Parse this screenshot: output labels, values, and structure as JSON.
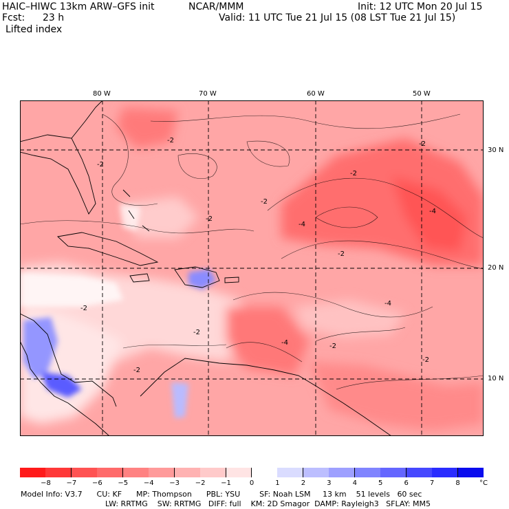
{
  "header": {
    "model": "HAIC–HIWC 13km ARW–GFS init",
    "org": "NCAR/MMM",
    "init": "Init: 12 UTC Mon 20 Jul 15",
    "fcst_label": "Fcst:",
    "fcst_value": "23 h",
    "valid": "Valid: 11 UTC Tue 21 Jul 15 (08 LST Tue 21 Jul 15)",
    "field": "Lifted index"
  },
  "axes": {
    "lon_labels": [
      "80 W",
      "70 W",
      "60 W",
      "50 W"
    ],
    "lat_labels": [
      "30 N",
      "20 N",
      "10 N"
    ]
  },
  "colorbar": {
    "labels": [
      "−8",
      "−7",
      "−6",
      "−5",
      "−4",
      "−3",
      "−2",
      "−1",
      "0",
      "1",
      "2",
      "3",
      "4",
      "5",
      "6",
      "7",
      "8"
    ],
    "unit": "°C",
    "colors": [
      "#ff1a1a",
      "#ff3838",
      "#ff5252",
      "#ff6a6a",
      "#ff8282",
      "#ff9a9a",
      "#ffb2b2",
      "#ffcaca",
      "#ffe4e4",
      "#ffffff",
      "#dadcff",
      "#bcbeff",
      "#9ea0ff",
      "#8084ff",
      "#6466ff",
      "#4648ff",
      "#2a2cff",
      "#0a0cee"
    ]
  },
  "contour_labels": [
    "-2",
    "-2",
    "-2",
    "-2",
    "-4",
    "-2",
    "-2",
    "-2",
    "-4",
    "-2",
    "-4",
    "-4",
    "-2",
    "-2",
    "-2",
    "-2"
  ],
  "footer": {
    "line1": "Model Info: V3.7      CU: KF      MP: Thompson      PBL: YSU        SF: Noah LSM     13 km    51 levels   60 sec",
    "line2": "LW: RRTMG    SW: RRTMG   DIFF: full    KM: 2D Smagor  DAMP: Rayleigh3   SFLAY: MM5"
  }
}
